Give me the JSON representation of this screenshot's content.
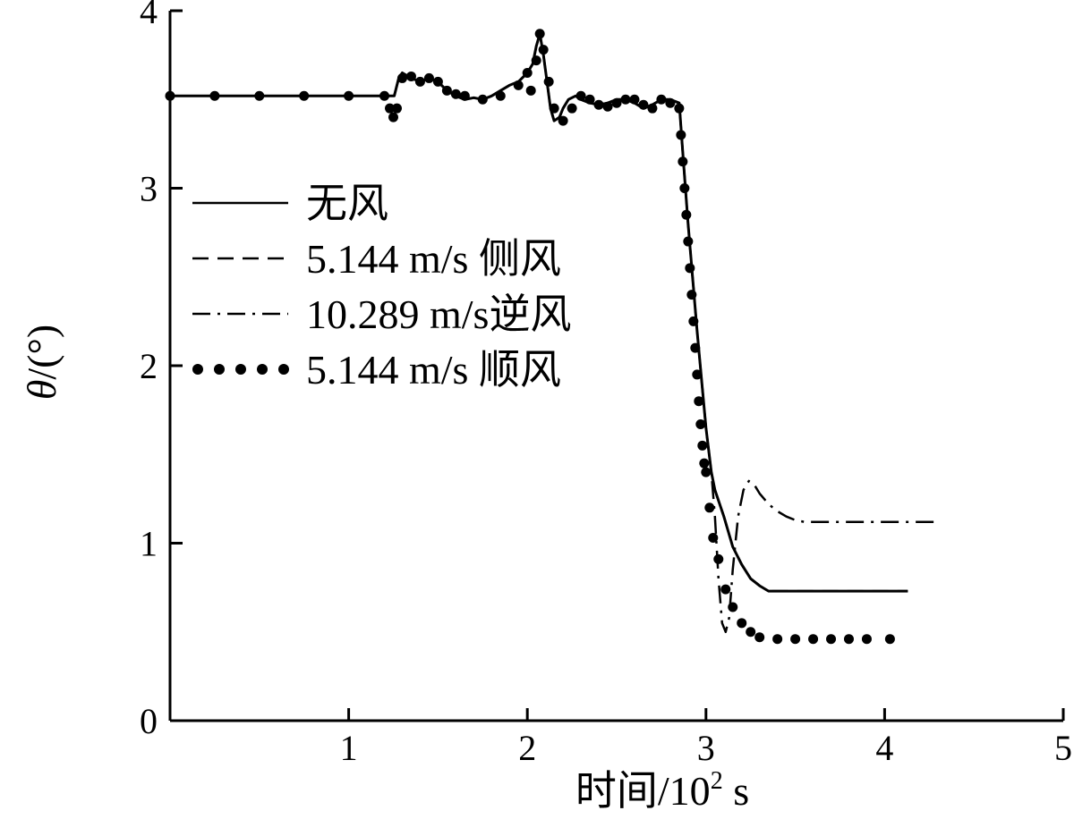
{
  "chart_data": {
    "type": "line",
    "xlabel": "时间/10",
    "xlabel_sup": "2",
    "xlabel_unit": " s",
    "ylabel": "θ/(°)",
    "xlim": [
      0,
      5
    ],
    "ylim": [
      0,
      4
    ],
    "xticks": [
      1,
      2,
      3,
      4,
      5
    ],
    "yticks": [
      0,
      1,
      2,
      3,
      4
    ],
    "grid": false,
    "legend_position": "left-middle",
    "series": [
      {
        "name": "无风",
        "style": "solid",
        "x": [
          0,
          0.25,
          0.5,
          0.75,
          1.0,
          1.22,
          1.24,
          1.255,
          1.27,
          1.28,
          1.3,
          1.35,
          1.4,
          1.45,
          1.5,
          1.55,
          1.6,
          1.65,
          1.7,
          1.75,
          1.8,
          1.85,
          1.9,
          1.95,
          2.0,
          2.03,
          2.05,
          2.07,
          2.09,
          2.11,
          2.13,
          2.15,
          2.18,
          2.2,
          2.23,
          2.27,
          2.3,
          2.35,
          2.4,
          2.45,
          2.5,
          2.55,
          2.6,
          2.65,
          2.7,
          2.75,
          2.8,
          2.85,
          2.87,
          2.9,
          2.95,
          3.0,
          3.03,
          3.05,
          3.1,
          3.15,
          3.2,
          3.25,
          3.3,
          3.35,
          3.4,
          3.5,
          3.6,
          3.7,
          3.8,
          3.9,
          4.0,
          4.13
        ],
        "y": [
          3.52,
          3.52,
          3.52,
          3.52,
          3.52,
          3.52,
          3.52,
          3.52,
          3.58,
          3.62,
          3.65,
          3.62,
          3.6,
          3.62,
          3.6,
          3.55,
          3.52,
          3.5,
          3.51,
          3.5,
          3.52,
          3.55,
          3.58,
          3.6,
          3.65,
          3.7,
          3.8,
          3.87,
          3.75,
          3.6,
          3.45,
          3.38,
          3.4,
          3.45,
          3.5,
          3.52,
          3.5,
          3.48,
          3.47,
          3.48,
          3.5,
          3.5,
          3.48,
          3.45,
          3.47,
          3.5,
          3.5,
          3.48,
          3.2,
          2.8,
          2.2,
          1.65,
          1.4,
          1.3,
          1.15,
          0.98,
          0.88,
          0.8,
          0.76,
          0.73,
          0.73,
          0.73,
          0.73,
          0.73,
          0.73,
          0.73,
          0.73,
          0.73
        ]
      },
      {
        "name": "5.144 m/s 侧风",
        "style": "dashed",
        "x": [
          0,
          0.25,
          0.5,
          0.75,
          1.0,
          1.22,
          1.24,
          1.255,
          1.27,
          1.28,
          1.3,
          1.35,
          1.4,
          1.45,
          1.5,
          1.55,
          1.6,
          1.65,
          1.7,
          1.75,
          1.8,
          1.85,
          1.9,
          1.95,
          2.0,
          2.03,
          2.05,
          2.07,
          2.09,
          2.11,
          2.13,
          2.15,
          2.18,
          2.2,
          2.23,
          2.27,
          2.3,
          2.35,
          2.4,
          2.45,
          2.5,
          2.55,
          2.6,
          2.65,
          2.7,
          2.75,
          2.8,
          2.85,
          2.87,
          2.9,
          2.95,
          3.0,
          3.03,
          3.05,
          3.1,
          3.15,
          3.2,
          3.25,
          3.3,
          3.35,
          3.4,
          3.5,
          3.6,
          3.7,
          3.8,
          3.9,
          4.0,
          4.13
        ],
        "y": [
          3.52,
          3.52,
          3.52,
          3.52,
          3.52,
          3.52,
          3.52,
          3.52,
          3.58,
          3.62,
          3.65,
          3.62,
          3.6,
          3.62,
          3.6,
          3.55,
          3.52,
          3.5,
          3.51,
          3.5,
          3.52,
          3.55,
          3.58,
          3.6,
          3.65,
          3.7,
          3.8,
          3.87,
          3.75,
          3.6,
          3.45,
          3.38,
          3.4,
          3.45,
          3.5,
          3.52,
          3.5,
          3.48,
          3.47,
          3.48,
          3.5,
          3.5,
          3.48,
          3.45,
          3.47,
          3.5,
          3.5,
          3.48,
          3.2,
          2.8,
          2.2,
          1.65,
          1.4,
          1.3,
          1.15,
          0.98,
          0.88,
          0.8,
          0.76,
          0.73,
          0.73,
          0.73,
          0.73,
          0.73,
          0.73,
          0.73,
          0.73,
          0.73
        ]
      },
      {
        "name": "10.289 m/s逆风",
        "style": "dashdot",
        "x": [
          0,
          0.25,
          0.5,
          0.75,
          1.0,
          1.22,
          1.24,
          1.255,
          1.27,
          1.28,
          1.3,
          1.35,
          1.4,
          1.45,
          1.5,
          1.55,
          1.6,
          1.65,
          1.7,
          1.75,
          1.8,
          1.85,
          1.9,
          1.95,
          2.0,
          2.03,
          2.05,
          2.07,
          2.09,
          2.11,
          2.13,
          2.15,
          2.18,
          2.2,
          2.23,
          2.27,
          2.3,
          2.35,
          2.4,
          2.45,
          2.5,
          2.55,
          2.6,
          2.65,
          2.7,
          2.75,
          2.8,
          2.85,
          2.87,
          2.9,
          2.95,
          3.0,
          3.03,
          3.05,
          3.07,
          3.09,
          3.11,
          3.13,
          3.15,
          3.18,
          3.21,
          3.24,
          3.27,
          3.3,
          3.35,
          3.4,
          3.45,
          3.5,
          3.55,
          3.6,
          3.7,
          3.8,
          3.9,
          4.0,
          4.1,
          4.2,
          4.28
        ],
        "y": [
          3.52,
          3.52,
          3.52,
          3.52,
          3.52,
          3.52,
          3.52,
          3.52,
          3.58,
          3.62,
          3.65,
          3.62,
          3.6,
          3.62,
          3.6,
          3.55,
          3.52,
          3.5,
          3.51,
          3.5,
          3.52,
          3.55,
          3.58,
          3.6,
          3.65,
          3.7,
          3.8,
          3.87,
          3.75,
          3.6,
          3.45,
          3.38,
          3.4,
          3.45,
          3.5,
          3.52,
          3.5,
          3.48,
          3.47,
          3.48,
          3.5,
          3.5,
          3.48,
          3.45,
          3.47,
          3.5,
          3.5,
          3.48,
          3.2,
          2.8,
          2.2,
          1.65,
          1.4,
          1.15,
          0.8,
          0.55,
          0.5,
          0.58,
          0.85,
          1.15,
          1.3,
          1.35,
          1.33,
          1.28,
          1.22,
          1.18,
          1.15,
          1.13,
          1.12,
          1.12,
          1.12,
          1.12,
          1.12,
          1.12,
          1.12,
          1.12,
          1.12
        ]
      },
      {
        "name": "5.144 m/s 顺风",
        "style": "dotted",
        "x": [
          0,
          0.25,
          0.5,
          0.75,
          1.0,
          1.2,
          1.23,
          1.25,
          1.27,
          1.3,
          1.35,
          1.4,
          1.45,
          1.5,
          1.55,
          1.6,
          1.65,
          1.75,
          1.85,
          1.95,
          2.0,
          2.02,
          2.05,
          2.07,
          2.09,
          2.12,
          2.15,
          2.2,
          2.25,
          2.3,
          2.35,
          2.4,
          2.45,
          2.5,
          2.55,
          2.6,
          2.65,
          2.7,
          2.75,
          2.8,
          2.85,
          2.86,
          2.87,
          2.88,
          2.89,
          2.9,
          2.91,
          2.92,
          2.93,
          2.94,
          2.95,
          2.96,
          2.97,
          2.98,
          2.99,
          3.0,
          3.02,
          3.04,
          3.07,
          3.11,
          3.15,
          3.2,
          3.25,
          3.3,
          3.4,
          3.5,
          3.6,
          3.7,
          3.8,
          3.9,
          4.03
        ],
        "y": [
          3.52,
          3.52,
          3.52,
          3.52,
          3.52,
          3.52,
          3.45,
          3.4,
          3.45,
          3.62,
          3.63,
          3.6,
          3.62,
          3.6,
          3.55,
          3.53,
          3.52,
          3.5,
          3.52,
          3.58,
          3.65,
          3.55,
          3.72,
          3.87,
          3.78,
          3.6,
          3.45,
          3.38,
          3.45,
          3.52,
          3.5,
          3.47,
          3.46,
          3.48,
          3.5,
          3.5,
          3.47,
          3.45,
          3.5,
          3.48,
          3.45,
          3.3,
          3.15,
          3.0,
          2.85,
          2.7,
          2.55,
          2.4,
          2.25,
          2.1,
          1.95,
          1.8,
          1.67,
          1.55,
          1.45,
          1.4,
          1.2,
          1.03,
          0.91,
          0.74,
          0.64,
          0.55,
          0.5,
          0.47,
          0.46,
          0.46,
          0.46,
          0.46,
          0.46,
          0.46,
          0.46
        ]
      }
    ]
  }
}
